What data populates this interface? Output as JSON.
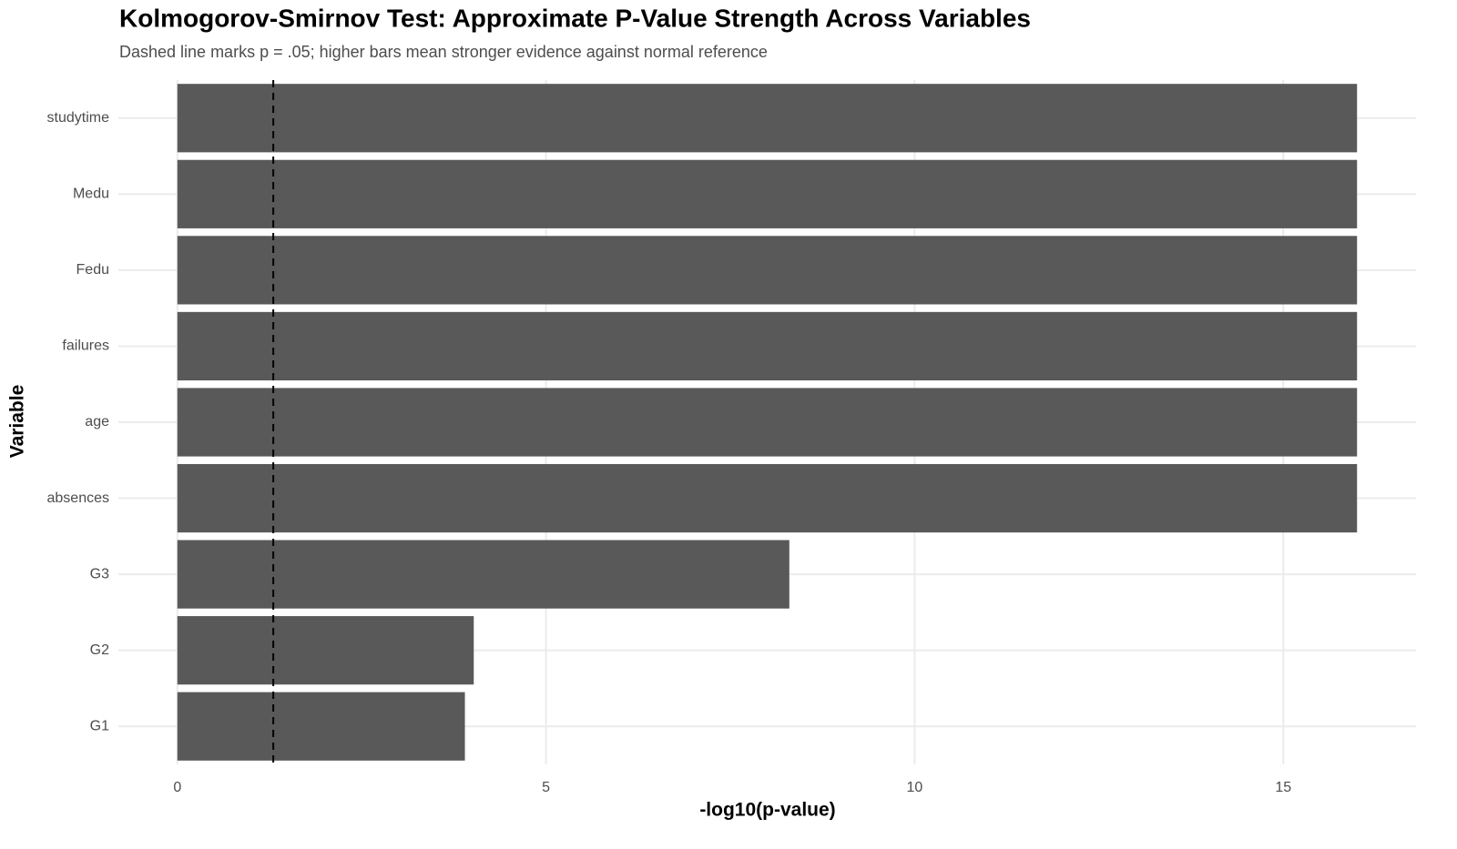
{
  "chart_data": {
    "type": "bar",
    "orientation": "horizontal",
    "title": "Kolmogorov-Smirnov Test: Approximate P-Value Strength Across Variables",
    "subtitle": "Dashed line marks p = .05; higher bars mean stronger evidence against normal reference",
    "x_label": "-log10(p-value)",
    "y_label": "Variable",
    "categories": [
      "studytime",
      "Medu",
      "Fedu",
      "failures",
      "age",
      "absences",
      "G3",
      "G2",
      "G1"
    ],
    "values": [
      16,
      16,
      16,
      16,
      16,
      16,
      8.3,
      4.02,
      3.9
    ],
    "color": "#595959",
    "xlim": [
      -0.8,
      16.8
    ],
    "xticks": [
      0,
      5,
      10,
      15
    ],
    "reference_line": 1.301,
    "grid": true
  }
}
